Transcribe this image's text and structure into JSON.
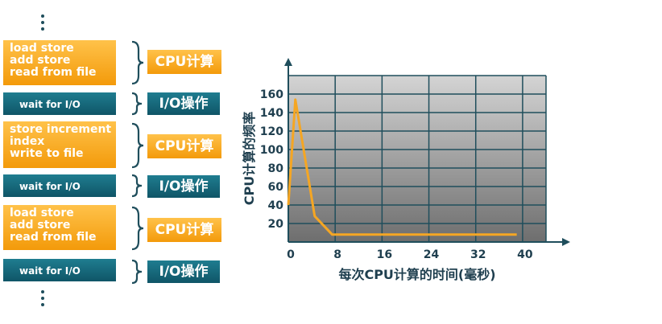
{
  "left_panel": {
    "blocks": [
      {
        "kind": "cpu",
        "lines": [
          "load store",
          "add store",
          "read from file"
        ],
        "label": "CPU计算"
      },
      {
        "kind": "io",
        "lines": [
          "wait for I/O"
        ],
        "label": "I/O操作"
      },
      {
        "kind": "cpu",
        "lines": [
          "store increment",
          "index",
          "write to file"
        ],
        "label": "CPU计算"
      },
      {
        "kind": "io",
        "lines": [
          "wait for I/O"
        ],
        "label": "I/O操作"
      },
      {
        "kind": "cpu",
        "lines": [
          "load store",
          "add store",
          "read from file"
        ],
        "label": "CPU计算"
      },
      {
        "kind": "io",
        "lines": [
          "wait for I/O"
        ],
        "label": "I/O操作"
      }
    ]
  },
  "chart_data": {
    "type": "line",
    "xlabel": "每次CPU计算的时间(毫秒)",
    "ylabel": "CPU计算的频率",
    "x_ticks": [
      "0",
      "8",
      "16",
      "24",
      "32",
      "40"
    ],
    "y_ticks": [
      "20",
      "40",
      "60",
      "80",
      "100",
      "120",
      "140",
      "160"
    ],
    "xlim": [
      0,
      44
    ],
    "ylim": [
      0,
      180
    ],
    "grid": true,
    "series": [
      {
        "points": [
          [
            0,
            40
          ],
          [
            1.2,
            154
          ],
          [
            4.5,
            28
          ],
          [
            7.5,
            8
          ],
          [
            39,
            8
          ]
        ]
      }
    ],
    "colors": {
      "line": "#f5a623",
      "grid": "#1f4e5c",
      "axis": "#1f4e5c",
      "plot_top": "#d4d4d4",
      "plot_bottom": "#6e6e6e"
    }
  }
}
